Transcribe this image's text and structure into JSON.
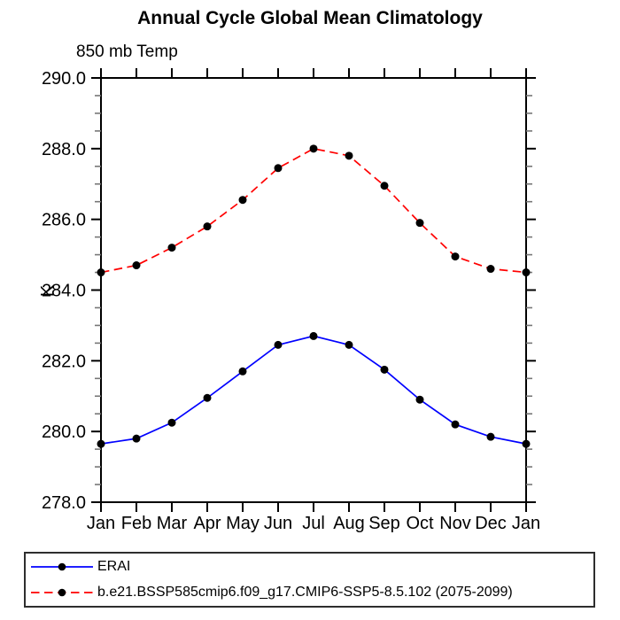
{
  "header": {
    "title": "Annual Cycle Global Mean Climatology",
    "subtitle": "850 mb Temp"
  },
  "chart_data": {
    "type": "line",
    "title": "Annual Cycle Global Mean Climatology",
    "subtitle": "850 mb Temp",
    "xlabel": "",
    "ylabel": "K",
    "categories": [
      "Jan",
      "Feb",
      "Mar",
      "Apr",
      "May",
      "Jun",
      "Jul",
      "Aug",
      "Sep",
      "Oct",
      "Nov",
      "Dec",
      "Jan"
    ],
    "ylim": [
      278.0,
      290.0
    ],
    "ytick_step": 2.0,
    "yminor_step": 0.5,
    "ytick_labels": [
      "278.0",
      "280.0",
      "282.0",
      "284.0",
      "286.0",
      "288.0",
      "290.0"
    ],
    "grid": false,
    "legend_position": "bottom-left-box",
    "axis_color": "#000000",
    "minor_tick_color": "#777777",
    "marker_color": "#000000",
    "series": [
      {
        "name": "ERAI",
        "color": "#0000ff",
        "line_style": "solid",
        "marker": "circle",
        "values": [
          279.65,
          279.8,
          280.25,
          280.95,
          281.7,
          282.45,
          282.7,
          282.45,
          281.75,
          280.9,
          280.2,
          279.85,
          279.65
        ]
      },
      {
        "name": "b.e21.BSSP585cmip6.f09_g17.CMIP6-SSP5-8.5.102 (2075-2099)",
        "color": "#ff0000",
        "line_style": "dashed",
        "marker": "circle",
        "values": [
          284.5,
          284.7,
          285.2,
          285.8,
          286.55,
          287.45,
          288.0,
          287.8,
          286.95,
          285.9,
          284.95,
          284.6,
          284.5
        ]
      }
    ]
  }
}
